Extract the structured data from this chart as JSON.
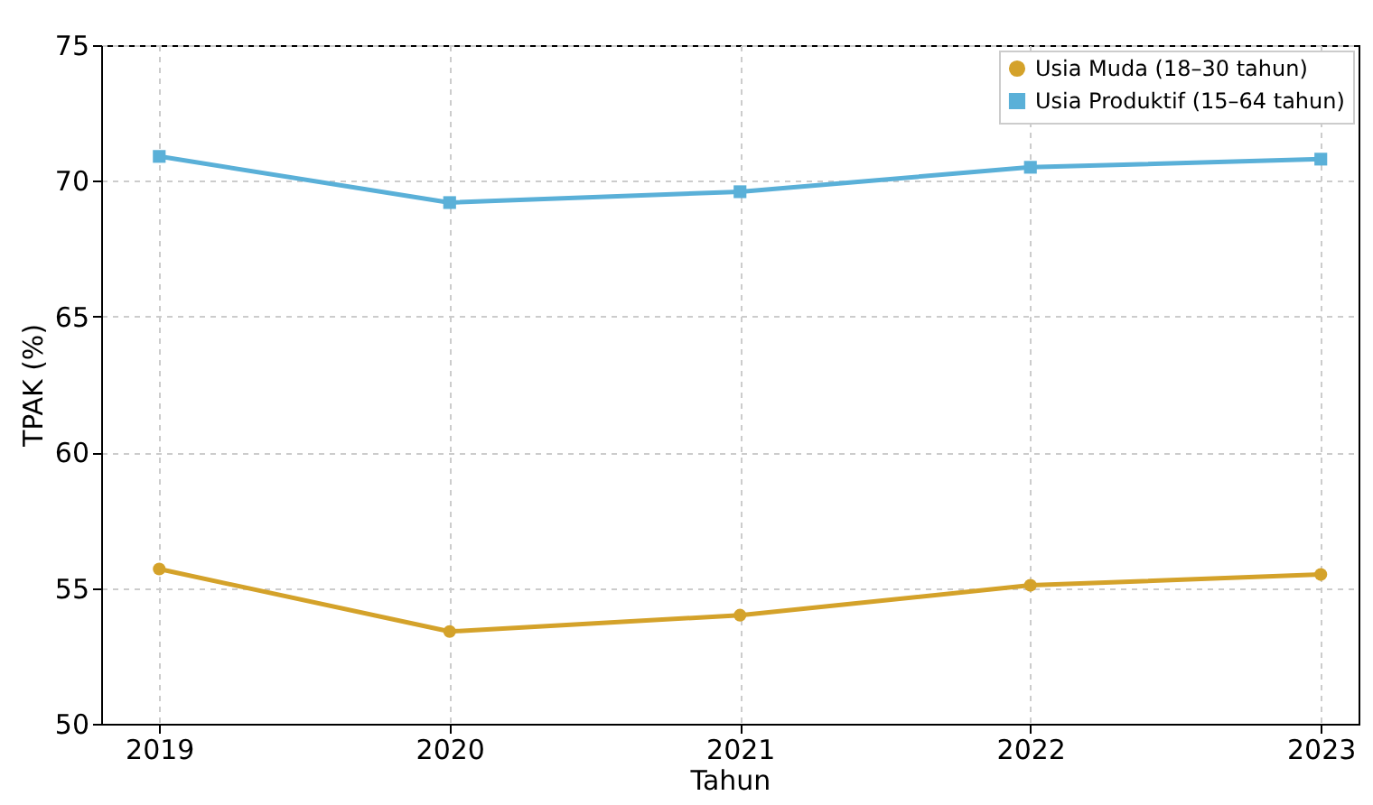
{
  "chart_data": {
    "type": "line",
    "xlabel": "Tahun",
    "ylabel": "TPAK (%)",
    "x": [
      2019,
      2020,
      2021,
      2022,
      2023
    ],
    "series": [
      {
        "name": "Usia Muda (18–30 tahun)",
        "color": "#d4a22a",
        "marker": "circle",
        "values": [
          55.7,
          53.4,
          54.0,
          55.1,
          55.5
        ]
      },
      {
        "name": "Usia Produktif (15–64 tahun)",
        "color": "#5ab0d8",
        "marker": "square",
        "values": [
          70.9,
          69.2,
          69.6,
          70.5,
          70.8
        ]
      }
    ],
    "xlim": [
      2018.8,
      2023.13
    ],
    "xticks": [
      2019,
      2020,
      2021,
      2022,
      2023
    ],
    "ylim": [
      50,
      75
    ],
    "yticks": [
      50,
      55,
      60,
      65,
      70,
      75
    ],
    "grid": true,
    "legend": "top right",
    "line_style": "solid"
  }
}
